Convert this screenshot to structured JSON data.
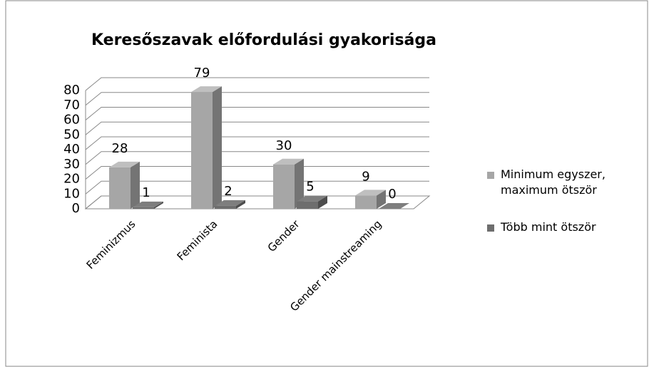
{
  "chart_data": {
    "type": "bar3d",
    "title": "Keresőszavak előfordulási gyakorisága",
    "categories": [
      "Feminizmus",
      "Feminista",
      "Gender",
      "Gender mainstreaming"
    ],
    "series": [
      {
        "name": "Minimum egyszer, maximum ötször",
        "color": "#a6a6a6",
        "values": [
          28,
          79,
          30,
          9
        ]
      },
      {
        "name": "Több mint ötször",
        "color": "#6e6e6e",
        "values": [
          1,
          2,
          5,
          0
        ]
      }
    ],
    "ylim": [
      0,
      80
    ],
    "yticks": [
      0,
      10,
      20,
      30,
      40,
      50,
      60,
      70,
      80
    ],
    "grid": true,
    "legend": "right"
  }
}
